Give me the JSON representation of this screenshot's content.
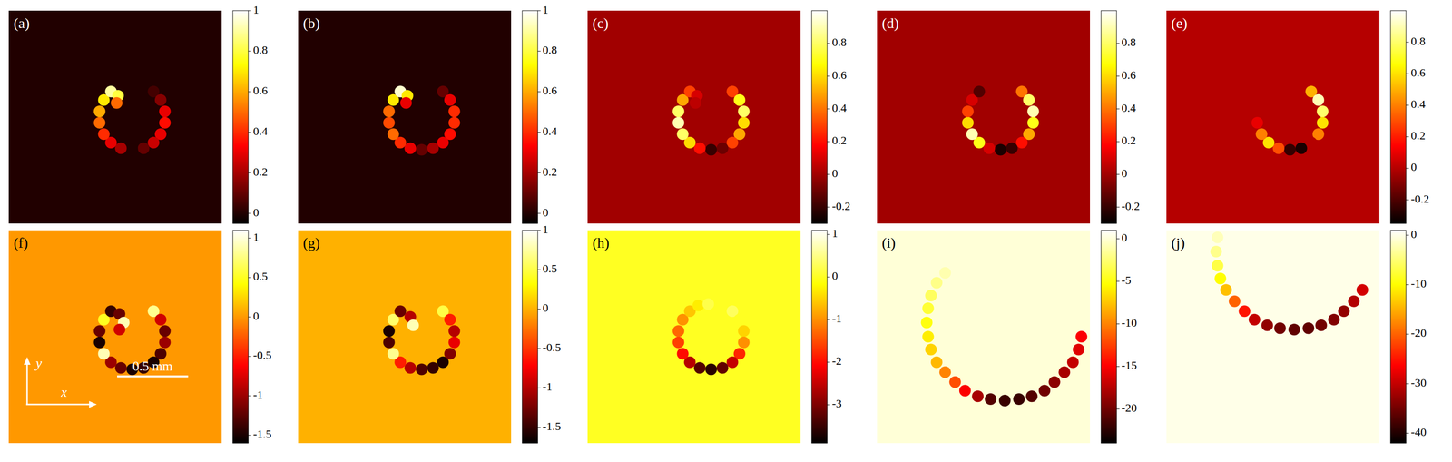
{
  "chart_data": [
    {
      "type": "heatmap",
      "label": "(a)",
      "xlim": [
        -0.75,
        0.75
      ],
      "ylim": [
        -0.75,
        0.75
      ],
      "tick_labels": false,
      "background": 0,
      "colorbar": {
        "range": [
          -0.05,
          1
        ],
        "ticks": [
          0,
          0.2,
          0.4,
          0.6,
          0.8,
          1
        ]
      },
      "cells": [
        [
          0.27,
          0.18,
          0.05
        ],
        [
          0.32,
          0.12,
          0.15
        ],
        [
          0.35,
          0.04,
          0.3
        ],
        [
          0.35,
          -0.04,
          0.35
        ],
        [
          0.32,
          -0.12,
          0.3
        ],
        [
          0.27,
          -0.18,
          0.25
        ],
        [
          0.2,
          -0.22,
          0.1
        ],
        [
          0.12,
          -0.23,
          0
        ],
        [
          0.04,
          -0.22,
          0.2
        ],
        [
          -0.03,
          -0.18,
          0.3
        ],
        [
          -0.08,
          -0.12,
          0.4
        ],
        [
          -0.11,
          -0.04,
          0.5
        ],
        [
          -0.11,
          0.04,
          0.6
        ],
        [
          -0.08,
          0.12,
          0.7
        ],
        [
          -0.03,
          0.18,
          0.9
        ],
        [
          0.02,
          0.15,
          0.8
        ],
        [
          0.01,
          0.1,
          0.5
        ]
      ]
    },
    {
      "type": "heatmap",
      "label": "(b)",
      "xlim": [
        -0.75,
        0.75
      ],
      "ylim": [
        -0.75,
        0.75
      ],
      "tick_labels": false,
      "background": 0,
      "colorbar": {
        "range": [
          -0.05,
          1
        ],
        "ticks": [
          0,
          0.2,
          0.4,
          0.6,
          0.8,
          1
        ]
      },
      "cells": [
        [
          0.27,
          0.18,
          0.1
        ],
        [
          0.32,
          0.12,
          0.3
        ],
        [
          0.35,
          0.04,
          0.4
        ],
        [
          0.35,
          -0.04,
          0.4
        ],
        [
          0.32,
          -0.12,
          0.35
        ],
        [
          0.27,
          -0.18,
          0.3
        ],
        [
          0.2,
          -0.22,
          0.2
        ],
        [
          0.12,
          -0.23,
          0.1
        ],
        [
          0.04,
          -0.22,
          0.3
        ],
        [
          -0.03,
          -0.18,
          0.4
        ],
        [
          -0.08,
          -0.12,
          0.5
        ],
        [
          -0.11,
          -0.04,
          0.45
        ],
        [
          -0.11,
          0.04,
          0.5
        ],
        [
          -0.08,
          0.12,
          0.7
        ],
        [
          -0.03,
          0.18,
          0.95
        ],
        [
          0.02,
          0.15,
          0.7
        ],
        [
          0.01,
          0.1,
          0.3
        ]
      ]
    },
    {
      "type": "heatmap",
      "label": "(c)",
      "xlim": [
        -0.75,
        0.75
      ],
      "ylim": [
        -0.75,
        0.75
      ],
      "tick_labels": false,
      "background": 0,
      "colorbar": {
        "range": [
          -0.3,
          1
        ],
        "ticks": [
          -0.2,
          0,
          0.2,
          0.4,
          0.6,
          0.8
        ]
      },
      "cells": [
        [
          0.27,
          0.18,
          0.3
        ],
        [
          0.32,
          0.12,
          0.7
        ],
        [
          0.35,
          0.04,
          0.8
        ],
        [
          0.35,
          -0.04,
          0.6
        ],
        [
          0.32,
          -0.12,
          0.5
        ],
        [
          0.27,
          -0.18,
          0.3
        ],
        [
          0.2,
          -0.22,
          -0.1
        ],
        [
          0.12,
          -0.23,
          -0.2
        ],
        [
          0.04,
          -0.22,
          0.2
        ],
        [
          -0.03,
          -0.18,
          0.6
        ],
        [
          -0.08,
          -0.12,
          0.8
        ],
        [
          -0.11,
          -0.04,
          0.9
        ],
        [
          -0.11,
          0.04,
          0.8
        ],
        [
          -0.08,
          0.12,
          0.5
        ],
        [
          -0.03,
          0.18,
          0.3
        ],
        [
          0.02,
          0.15,
          0.1
        ],
        [
          0.01,
          0.1,
          0.05
        ]
      ]
    },
    {
      "type": "heatmap",
      "label": "(d)",
      "xlim": [
        -0.75,
        0.75
      ],
      "ylim": [
        -0.75,
        0.75
      ],
      "tick_labels": false,
      "background": 0,
      "colorbar": {
        "range": [
          -0.3,
          1
        ],
        "ticks": [
          -0.2,
          0,
          0.2,
          0.4,
          0.6,
          0.8
        ]
      },
      "cells": [
        [
          0.27,
          0.18,
          0.4
        ],
        [
          0.32,
          0.12,
          0.8
        ],
        [
          0.35,
          0.04,
          0.9
        ],
        [
          0.35,
          -0.04,
          0.7
        ],
        [
          0.32,
          -0.12,
          0.5
        ],
        [
          0.27,
          -0.18,
          0.2
        ],
        [
          0.2,
          -0.22,
          -0.2
        ],
        [
          0.12,
          -0.23,
          -0.25
        ],
        [
          0.04,
          -0.22,
          0.1
        ],
        [
          -0.03,
          -0.18,
          0.7
        ],
        [
          -0.08,
          -0.12,
          0.9
        ],
        [
          -0.11,
          -0.04,
          0.6
        ],
        [
          -0.11,
          0.04,
          0.3
        ],
        [
          -0.08,
          0.12,
          0.1
        ],
        [
          -0.03,
          0.18,
          -0.15
        ]
      ]
    },
    {
      "type": "heatmap",
      "label": "(e)",
      "xlim": [
        -0.75,
        0.75
      ],
      "ylim": [
        -0.75,
        0.75
      ],
      "tick_labels": false,
      "background": 0,
      "colorbar": {
        "range": [
          -0.35,
          1
        ],
        "ticks": [
          -0.2,
          0,
          0.2,
          0.4,
          0.6,
          0.8
        ]
      },
      "cells": [
        [
          0.27,
          0.18,
          0.5
        ],
        [
          0.32,
          0.12,
          0.9
        ],
        [
          0.35,
          0.04,
          0.8
        ],
        [
          0.35,
          -0.04,
          0.6
        ],
        [
          0.32,
          -0.12,
          0.4
        ],
        [
          0.27,
          -0.18,
          0
        ],
        [
          0.2,
          -0.22,
          -0.3
        ],
        [
          0.12,
          -0.23,
          -0.25
        ],
        [
          0.04,
          -0.22,
          0.3
        ],
        [
          -0.03,
          -0.18,
          0.6
        ],
        [
          -0.08,
          -0.12,
          0.4
        ],
        [
          -0.11,
          -0.04,
          0.1
        ]
      ]
    },
    {
      "type": "heatmap",
      "label": "(f)",
      "xlim": [
        -0.75,
        0.75
      ],
      "ylim": [
        -0.75,
        0.75
      ],
      "tick_labels": false,
      "background": 0,
      "colorbar": {
        "range": [
          -1.6,
          1.1
        ],
        "ticks": [
          -1.5,
          -1,
          -0.5,
          0,
          0.5,
          1
        ]
      },
      "xlabel": "x",
      "ylabel": "y",
      "scale_bar": {
        "length": 0.5,
        "label": "0.5 mm"
      },
      "cells": [
        [
          0.27,
          0.18,
          0.8
        ],
        [
          0.32,
          0.12,
          -0.8
        ],
        [
          0.35,
          0.04,
          -1.2
        ],
        [
          0.35,
          -0.04,
          -1
        ],
        [
          0.32,
          -0.12,
          -1.3
        ],
        [
          0.27,
          -0.18,
          -1.5
        ],
        [
          0.2,
          -0.22,
          -1.4
        ],
        [
          0.12,
          -0.23,
          -1.5
        ],
        [
          0.04,
          -0.22,
          -1.2
        ],
        [
          -0.03,
          -0.18,
          -1
        ],
        [
          -0.08,
          -0.12,
          0.9
        ],
        [
          -0.11,
          -0.04,
          -1.5
        ],
        [
          -0.11,
          0.04,
          -1.2
        ],
        [
          -0.08,
          0.12,
          0.5
        ],
        [
          -0.03,
          0.18,
          -1.4
        ],
        [
          0.03,
          0.16,
          -1.2
        ],
        [
          0.06,
          0.1,
          0.9
        ],
        [
          0.03,
          0.05,
          -0.8
        ]
      ]
    },
    {
      "type": "heatmap",
      "label": "(g)",
      "xlim": [
        -0.75,
        0.75
      ],
      "ylim": [
        -0.75,
        0.75
      ],
      "tick_labels": false,
      "background": 0,
      "colorbar": {
        "range": [
          -1.7,
          1
        ],
        "ticks": [
          -1.5,
          -1,
          -0.5,
          0,
          0.5,
          1
        ]
      },
      "cells": [
        [
          0.27,
          0.18,
          0.5
        ],
        [
          0.32,
          0.12,
          -0.6
        ],
        [
          0.35,
          0.04,
          -1
        ],
        [
          0.35,
          -0.04,
          -0.8
        ],
        [
          0.32,
          -0.12,
          -1.2
        ],
        [
          0.27,
          -0.18,
          -1.6
        ],
        [
          0.2,
          -0.22,
          -1.5
        ],
        [
          0.12,
          -0.23,
          -1.4
        ],
        [
          0.04,
          -0.22,
          -1
        ],
        [
          -0.03,
          -0.18,
          -0.6
        ],
        [
          -0.08,
          -0.12,
          0.7
        ],
        [
          -0.11,
          -0.04,
          -1.4
        ],
        [
          -0.11,
          0.04,
          -1.6
        ],
        [
          -0.08,
          0.12,
          0.6
        ],
        [
          -0.03,
          0.18,
          -1.3
        ],
        [
          0.04,
          0.14,
          -1
        ],
        [
          0.06,
          0.08,
          0.8
        ]
      ]
    },
    {
      "type": "heatmap",
      "label": "(h)",
      "xlim": [
        -0.75,
        0.75
      ],
      "ylim": [
        -0.75,
        0.75
      ],
      "tick_labels": false,
      "background": 0,
      "colorbar": {
        "range": [
          -3.9,
          1.1
        ],
        "ticks": [
          -3,
          -2,
          -1,
          0,
          1
        ]
      },
      "cells": [
        [
          0.27,
          0.18,
          0.3
        ],
        [
          0.32,
          0.12,
          0
        ],
        [
          0.35,
          0.04,
          -0.5
        ],
        [
          0.35,
          -0.04,
          -1
        ],
        [
          0.32,
          -0.12,
          -1.8
        ],
        [
          0.27,
          -0.18,
          -2.5
        ],
        [
          0.2,
          -0.22,
          -3.2
        ],
        [
          0.12,
          -0.23,
          -3.6
        ],
        [
          0.04,
          -0.22,
          -3.3
        ],
        [
          -0.03,
          -0.18,
          -2.6
        ],
        [
          -0.08,
          -0.12,
          -2
        ],
        [
          -0.11,
          -0.04,
          -1.6
        ],
        [
          -0.11,
          0.04,
          -1.3
        ],
        [
          -0.08,
          0.12,
          -1
        ],
        [
          -0.03,
          0.18,
          -0.6
        ],
        [
          0.03,
          0.22,
          -0.3
        ],
        [
          0.1,
          0.23,
          0.2
        ]
      ]
    },
    {
      "type": "heatmap",
      "label": "(i)",
      "xlim": [
        -0.75,
        0.75
      ],
      "ylim": [
        -0.75,
        0.75
      ],
      "tick_labels": false,
      "background": 0,
      "colorbar": {
        "range": [
          -24,
          1
        ],
        "ticks": [
          -20,
          -15,
          -10,
          -5,
          0
        ]
      },
      "cells": [
        [
          -0.27,
          0.45,
          -1
        ],
        [
          -0.33,
          0.38,
          -2
        ],
        [
          -0.37,
          0.29,
          -3
        ],
        [
          -0.39,
          0.2,
          -4
        ],
        [
          -0.4,
          0.1,
          -5
        ],
        [
          -0.39,
          0,
          -6
        ],
        [
          -0.37,
          -0.09,
          -7
        ],
        [
          -0.33,
          -0.18,
          -8
        ],
        [
          -0.27,
          -0.25,
          -10
        ],
        [
          -0.2,
          -0.32,
          -12
        ],
        [
          -0.13,
          -0.38,
          -15
        ],
        [
          -0.04,
          -0.42,
          -18
        ],
        [
          0.05,
          -0.44,
          -21
        ],
        [
          0.15,
          -0.45,
          -22
        ],
        [
          0.25,
          -0.44,
          -22
        ],
        [
          0.34,
          -0.42,
          -21
        ],
        [
          0.43,
          -0.38,
          -20
        ],
        [
          0.5,
          -0.32,
          -19
        ],
        [
          0.57,
          -0.25,
          -18
        ],
        [
          0.63,
          -0.18,
          -17
        ],
        [
          0.67,
          -0.09,
          -16
        ],
        [
          0.69,
          0,
          -15
        ]
      ]
    },
    {
      "type": "heatmap",
      "label": "(j)",
      "xlim": [
        -0.75,
        0.75
      ],
      "ylim": [
        -0.75,
        0.75
      ],
      "tick_labels": false,
      "background": 0,
      "colorbar": {
        "range": [
          -42,
          1
        ],
        "ticks": [
          -40,
          -30,
          -20,
          -10,
          0
        ]
      },
      "cells": [
        [
          -0.39,
          0.7,
          -2
        ],
        [
          -0.4,
          0.6,
          -4
        ],
        [
          -0.39,
          0.5,
          -7
        ],
        [
          -0.37,
          0.41,
          -10
        ],
        [
          -0.33,
          0.33,
          -14
        ],
        [
          -0.27,
          0.25,
          -20
        ],
        [
          -0.2,
          0.18,
          -25
        ],
        [
          -0.13,
          0.12,
          -30
        ],
        [
          -0.04,
          0.08,
          -33
        ],
        [
          0.05,
          0.06,
          -35
        ],
        [
          0.15,
          0.05,
          -36
        ],
        [
          0.25,
          0.06,
          -36
        ],
        [
          0.34,
          0.08,
          -35
        ],
        [
          0.43,
          0.12,
          -34
        ],
        [
          0.5,
          0.18,
          -33
        ],
        [
          0.57,
          0.25,
          -31
        ],
        [
          0.63,
          0.33,
          -29
        ]
      ]
    }
  ]
}
